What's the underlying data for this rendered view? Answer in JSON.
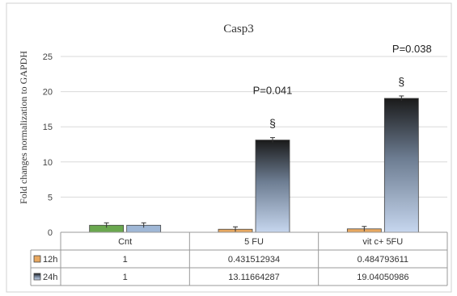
{
  "chart_data": {
    "type": "bar",
    "title": "Casp3",
    "ylabel": "Fold changes normalization to GAPDH",
    "xlabel": "",
    "ylim": [
      0,
      25
    ],
    "yticks": [
      0,
      5,
      10,
      15,
      20,
      25
    ],
    "categories": [
      "Cnt",
      "5 FU",
      "vit c+ 5FU"
    ],
    "series": [
      {
        "name": "12h",
        "values": [
          1,
          0.431512934,
          0.484793611
        ],
        "value_labels": [
          "1",
          "0.431512934",
          "0.484793611"
        ],
        "color": "#e8a860"
      },
      {
        "name": "24h",
        "values": [
          1,
          13.11664287,
          19.04050986
        ],
        "value_labels": [
          "1",
          "13.11664287",
          "19.04050986"
        ],
        "color": "#9fb7d6"
      }
    ],
    "cnt_color": "#6aa84f",
    "annotations": [
      {
        "category": 1,
        "p_text": "P=0.041",
        "marker": "§"
      },
      {
        "category": 2,
        "p_text": "P=0.038",
        "marker": "§"
      }
    ],
    "grid": true,
    "legend": "data-table"
  }
}
